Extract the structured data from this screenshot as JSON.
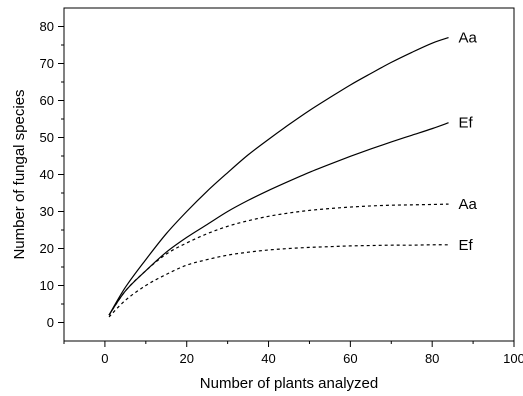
{
  "chart_data": {
    "type": "line",
    "title": "",
    "xlabel": "Number of plants analyzed",
    "ylabel": "Number of fungal species",
    "xlim": [
      -10,
      100
    ],
    "ylim": [
      -5,
      85
    ],
    "x_ticks": [
      0,
      20,
      40,
      60,
      80,
      100
    ],
    "y_ticks": [
      0,
      10,
      20,
      30,
      40,
      50,
      60,
      70,
      80
    ],
    "grid": false,
    "legend": "none",
    "series": [
      {
        "name": "Aa",
        "line_style": "solid",
        "x": [
          1,
          5,
          10,
          15,
          20,
          25,
          30,
          35,
          40,
          45,
          50,
          55,
          60,
          65,
          70,
          75,
          80,
          84
        ],
        "y": [
          2,
          9.5,
          17,
          24,
          30,
          35.5,
          40.5,
          45.3,
          49.5,
          53.5,
          57.3,
          60.8,
          64.2,
          67.3,
          70.3,
          73,
          75.5,
          77
        ]
      },
      {
        "name": "Ef",
        "line_style": "solid",
        "x": [
          1,
          5,
          10,
          15,
          20,
          25,
          30,
          35,
          40,
          45,
          50,
          55,
          60,
          65,
          70,
          75,
          80,
          84
        ],
        "y": [
          2,
          8.5,
          14,
          19,
          23,
          26.5,
          30,
          33,
          35.7,
          38.2,
          40.6,
          42.8,
          44.9,
          46.9,
          48.8,
          50.6,
          52.4,
          54
        ]
      },
      {
        "name": "Aa",
        "line_style": "dotted",
        "x": [
          1,
          5,
          10,
          15,
          20,
          25,
          30,
          35,
          40,
          45,
          50,
          55,
          60,
          65,
          70,
          75,
          80,
          84
        ],
        "y": [
          2,
          8.5,
          14,
          18.5,
          21.5,
          24,
          26,
          27.5,
          28.7,
          29.6,
          30.3,
          30.8,
          31.2,
          31.5,
          31.7,
          31.8,
          31.9,
          32
        ]
      },
      {
        "name": "Ef",
        "line_style": "dotted",
        "x": [
          1,
          5,
          10,
          15,
          20,
          25,
          30,
          35,
          40,
          45,
          50,
          55,
          60,
          65,
          70,
          75,
          80,
          84
        ],
        "y": [
          1.5,
          6,
          10,
          13,
          15.5,
          17,
          18.2,
          19,
          19.6,
          20,
          20.3,
          20.5,
          20.7,
          20.8,
          20.9,
          20.9,
          21,
          21
        ]
      }
    ]
  }
}
